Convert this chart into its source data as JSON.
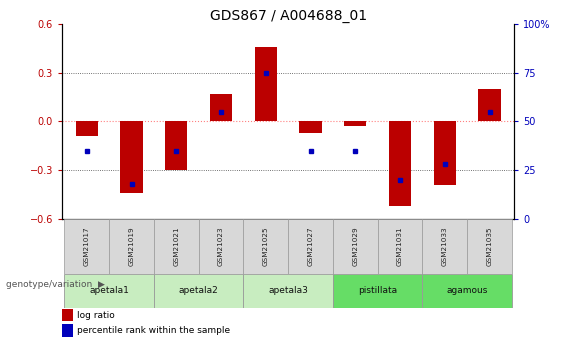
{
  "title": "GDS867 / A004688_01",
  "samples": [
    "GSM21017",
    "GSM21019",
    "GSM21021",
    "GSM21023",
    "GSM21025",
    "GSM21027",
    "GSM21029",
    "GSM21031",
    "GSM21033",
    "GSM21035"
  ],
  "log_ratio": [
    -0.09,
    -0.44,
    -0.3,
    0.17,
    0.46,
    -0.07,
    -0.03,
    -0.52,
    -0.39,
    0.2
  ],
  "percentile_rank": [
    35,
    18,
    35,
    55,
    75,
    35,
    35,
    20,
    28,
    55
  ],
  "group_spans": [
    {
      "name": "apetala1",
      "start": 0,
      "end": 1,
      "color": "#c8edc0"
    },
    {
      "name": "apetala2",
      "start": 2,
      "end": 3,
      "color": "#c8edc0"
    },
    {
      "name": "apetala3",
      "start": 4,
      "end": 5,
      "color": "#c8edc0"
    },
    {
      "name": "pistillata",
      "start": 6,
      "end": 7,
      "color": "#66dd66"
    },
    {
      "name": "agamous",
      "start": 8,
      "end": 9,
      "color": "#66dd66"
    }
  ],
  "ylim_left": [
    -0.6,
    0.6
  ],
  "ylim_right": [
    0,
    100
  ],
  "yticks_left": [
    -0.6,
    -0.3,
    0.0,
    0.3,
    0.6
  ],
  "yticks_right": [
    0,
    25,
    50,
    75,
    100
  ],
  "bar_color": "#bb0000",
  "dot_color": "#0000bb",
  "zero_line_color": "#ff8080",
  "grid_color": "#444444",
  "sample_box_color": "#d8d8d8",
  "title_fontsize": 10,
  "tick_fontsize": 7,
  "bar_width": 0.5,
  "figsize": [
    5.65,
    3.45
  ],
  "dpi": 100
}
